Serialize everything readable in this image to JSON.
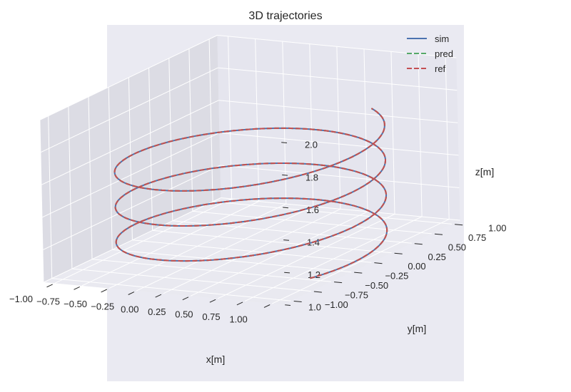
{
  "chart_data": {
    "type": "line3d",
    "title": "3D trajectories",
    "xlabel": "x[m]",
    "ylabel": "y[m]",
    "zlabel": "z[m]",
    "xlim": [
      -1.1,
      1.1
    ],
    "ylim": [
      -1.1,
      1.1
    ],
    "zlim": [
      1.0,
      2.0
    ],
    "xticks": [
      "−1.00",
      "−0.75",
      "−0.50",
      "−0.25",
      "0.00",
      "0.25",
      "0.50",
      "0.75",
      "1.00"
    ],
    "yticks": [
      "−1.00",
      "−0.75",
      "−0.50",
      "−0.25",
      "0.00",
      "0.25",
      "0.50",
      "0.75",
      "1.00"
    ],
    "zticks": [
      "1.0",
      "1.2",
      "1.4",
      "1.6",
      "1.8",
      "2.0"
    ],
    "grid": true,
    "legend_position": "top-right",
    "trajectory": {
      "shape": "helix",
      "radius": 1.0,
      "z_start": 1.0,
      "z_end": 1.7,
      "turns": 3.25,
      "start_angle_deg": -28
    },
    "series": [
      {
        "name": "sim",
        "color": "#4c72b0",
        "style": "solid"
      },
      {
        "name": "pred",
        "color": "#55a868",
        "style": "dashed"
      },
      {
        "name": "ref",
        "color": "#c44e52",
        "style": "dashed"
      }
    ],
    "colors": {
      "pane_back": "#e5e5ee",
      "pane_side": "#dcdce4",
      "pane_floor": "#e9e9f0",
      "grid": "#ffffff",
      "text": "#262626"
    }
  }
}
